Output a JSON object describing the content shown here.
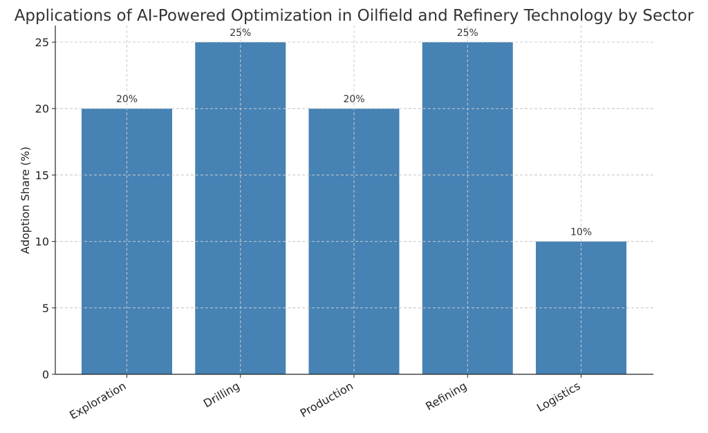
{
  "chart_data": {
    "type": "bar",
    "title": "Applications of AI-Powered Optimization in Oilfield and Refinery Technology by Sector",
    "xlabel": "",
    "ylabel": "Adoption Share (%)",
    "categories": [
      "Exploration",
      "Drilling",
      "Production",
      "Refining",
      "Logistics"
    ],
    "values": [
      20,
      25,
      20,
      25,
      10
    ],
    "data_labels": [
      "20%",
      "25%",
      "20%",
      "25%",
      "10%"
    ],
    "ylim": [
      0,
      26.25
    ],
    "y_ticks": [
      0,
      5,
      10,
      15,
      20,
      25
    ],
    "grid": true,
    "legend": "none",
    "bar_color": "#4682b4"
  }
}
